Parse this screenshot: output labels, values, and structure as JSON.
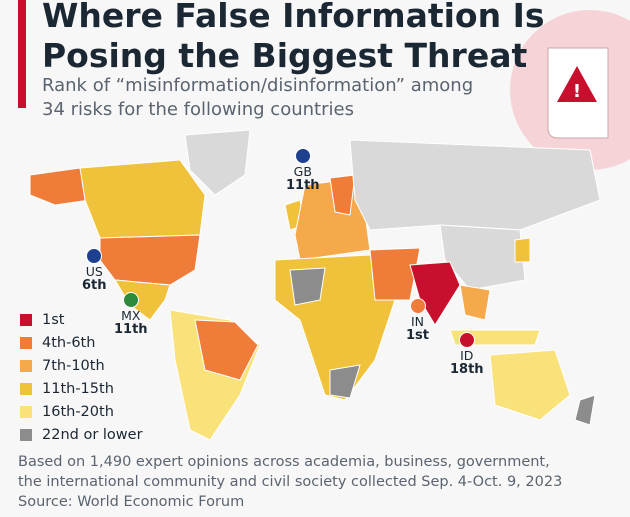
{
  "header": {
    "title": [
      "Where False Information Is",
      "Posing the Biggest Threat"
    ],
    "subtitle": [
      "Rank of “misinformation/disinformation” among",
      "34 risks for the following countries"
    ]
  },
  "legend": [
    {
      "label": "1st",
      "color": "#c8102e"
    },
    {
      "label": "4th-6th",
      "color": "#f07c3a"
    },
    {
      "label": "7th-10th",
      "color": "#f5a94a"
    },
    {
      "label": "11th-15th",
      "color": "#f0c23c"
    },
    {
      "label": "16th-20th",
      "color": "#f9e27a"
    },
    {
      "label": "22nd or lower",
      "color": "#8c8c8c"
    }
  ],
  "callouts": [
    {
      "code": "GB",
      "rank": "11th"
    },
    {
      "code": "US",
      "rank": "6th"
    },
    {
      "code": "MX",
      "rank": "11th"
    },
    {
      "code": "IN",
      "rank": "1st"
    },
    {
      "code": "ID",
      "rank": "18th"
    }
  ],
  "footer": {
    "note": [
      "Based on 1,490 expert opinions across academia, business, government,",
      "the international community and civil society collected Sep. 4-Oct. 9, 2023"
    ],
    "source": "Source: World Economic Forum"
  }
}
